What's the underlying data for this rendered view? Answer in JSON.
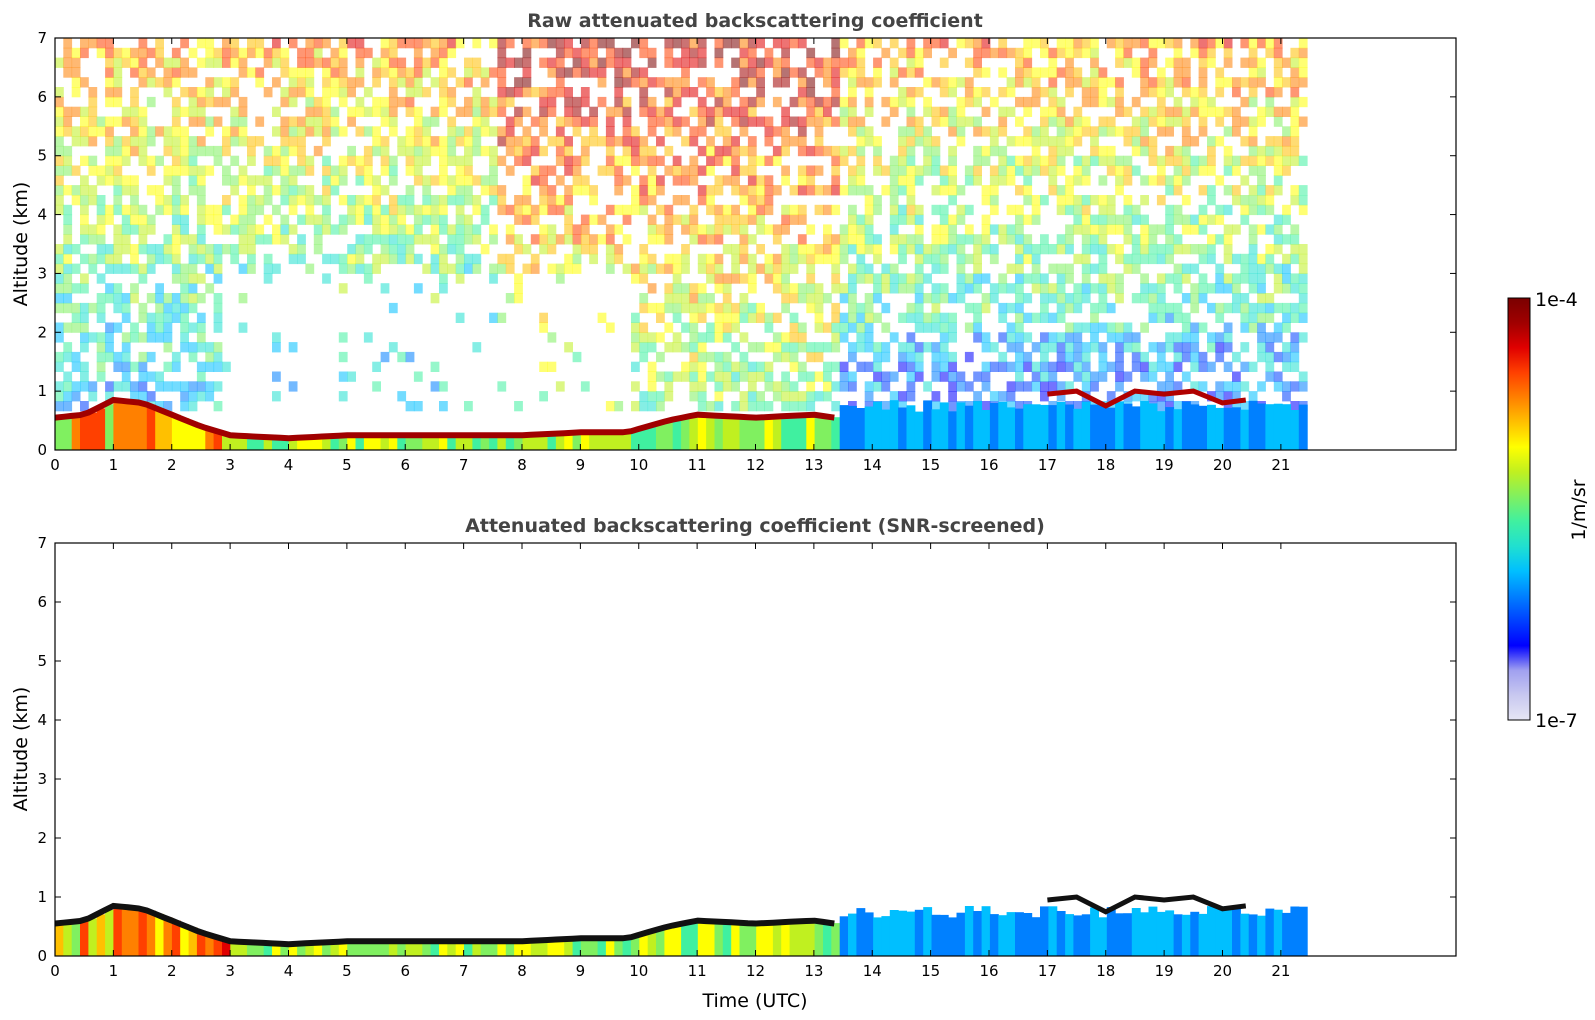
{
  "chart_data": [
    {
      "type": "heatmap",
      "title": "Raw attenuated backscattering coefficient",
      "xlabel": "",
      "ylabel": "Altitude (km)",
      "xlim": [
        0,
        24
      ],
      "ylim": [
        0,
        7
      ],
      "x_ticks": [
        0,
        1,
        2,
        3,
        4,
        5,
        6,
        7,
        8,
        9,
        10,
        11,
        12,
        13,
        14,
        15,
        16,
        17,
        18,
        19,
        20,
        21
      ],
      "y_ticks": [
        0,
        1,
        2,
        3,
        4,
        5,
        6,
        7
      ],
      "data_extent_x": [
        0,
        21.45
      ],
      "layer_top_km": [
        [
          0.0,
          0.55
        ],
        [
          0.5,
          0.6
        ],
        [
          1.0,
          0.85
        ],
        [
          1.5,
          0.8
        ],
        [
          2.0,
          0.6
        ],
        [
          2.5,
          0.4
        ],
        [
          3.0,
          0.25
        ],
        [
          4.0,
          0.2
        ],
        [
          5.0,
          0.25
        ],
        [
          6.0,
          0.25
        ],
        [
          7.0,
          0.25
        ],
        [
          8.0,
          0.25
        ],
        [
          9.0,
          0.3
        ],
        [
          9.8,
          0.3
        ],
        [
          10.5,
          0.5
        ],
        [
          11.0,
          0.6
        ],
        [
          12.0,
          0.55
        ],
        [
          13.0,
          0.6
        ],
        [
          13.35,
          0.55
        ]
      ],
      "elevated_layers_km": [
        [
          17.0,
          0.95
        ],
        [
          17.5,
          1.0
        ],
        [
          18.0,
          0.75
        ],
        [
          18.5,
          1.0
        ],
        [
          19.0,
          0.95
        ],
        [
          19.5,
          1.0
        ],
        [
          20.0,
          0.8
        ],
        [
          20.4,
          0.85
        ]
      ],
      "grid": false
    },
    {
      "type": "heatmap",
      "title": "Attenuated backscattering coefficient (SNR-screened)",
      "xlabel": "Time (UTC)",
      "ylabel": "Altitude (km)",
      "xlim": [
        0,
        24
      ],
      "ylim": [
        0,
        7
      ],
      "x_ticks": [
        0,
        1,
        2,
        3,
        4,
        5,
        6,
        7,
        8,
        9,
        10,
        11,
        12,
        13,
        14,
        15,
        16,
        17,
        18,
        19,
        20,
        21
      ],
      "y_ticks": [
        0,
        1,
        2,
        3,
        4,
        5,
        6,
        7
      ],
      "data_extent_x": [
        0,
        21.45
      ],
      "layer_top_km": [
        [
          0.0,
          0.55
        ],
        [
          0.5,
          0.6
        ],
        [
          1.0,
          0.85
        ],
        [
          1.5,
          0.8
        ],
        [
          2.0,
          0.6
        ],
        [
          2.5,
          0.4
        ],
        [
          3.0,
          0.25
        ],
        [
          4.0,
          0.2
        ],
        [
          5.0,
          0.25
        ],
        [
          6.0,
          0.25
        ],
        [
          7.0,
          0.25
        ],
        [
          8.0,
          0.25
        ],
        [
          9.0,
          0.3
        ],
        [
          9.8,
          0.3
        ],
        [
          10.5,
          0.5
        ],
        [
          11.0,
          0.6
        ],
        [
          12.0,
          0.55
        ],
        [
          13.0,
          0.6
        ],
        [
          13.35,
          0.55
        ]
      ],
      "elevated_layers_km": [
        [
          17.0,
          0.95
        ],
        [
          17.5,
          1.0
        ],
        [
          18.0,
          0.75
        ],
        [
          18.5,
          1.0
        ],
        [
          19.0,
          0.95
        ],
        [
          19.5,
          1.0
        ],
        [
          20.0,
          0.8
        ],
        [
          20.4,
          0.85
        ]
      ],
      "grid": false
    }
  ],
  "colorbar": {
    "label": "1/m/sr",
    "max_label": "1e-4",
    "min_label": "1e-7",
    "colors": [
      "#e6e6f5",
      "#c8c8f0",
      "#a0a0f0",
      "#0000ff",
      "#0040ff",
      "#0080ff",
      "#00bfff",
      "#20e0d0",
      "#40f0a0",
      "#80f060",
      "#c0f020",
      "#ffff00",
      "#ffc000",
      "#ff8000",
      "#ff4000",
      "#e00000",
      "#a00000",
      "#7a0000"
    ]
  },
  "labels": {
    "top_title": "Raw attenuated backscattering coefficient",
    "bottom_title": "Attenuated backscattering coefficient (SNR-screened)",
    "ylabel": "Altitude (km)",
    "xlabel": "Time (UTC)"
  }
}
